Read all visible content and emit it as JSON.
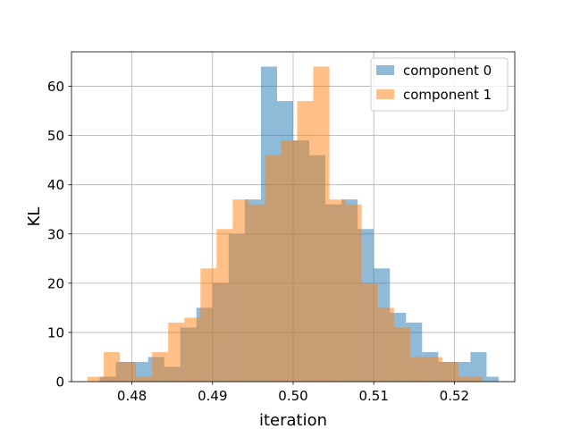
{
  "chart_data": {
    "type": "bar",
    "subtype": "overlapping-histogram",
    "xlabel": "iteration",
    "ylabel": "KL",
    "xlim": [
      0.4725,
      0.5275
    ],
    "ylim": [
      0,
      67
    ],
    "xticks": [
      0.48,
      0.49,
      0.5,
      0.51,
      0.52
    ],
    "xtick_labels": [
      "0.48",
      "0.49",
      "0.50",
      "0.51",
      "0.52"
    ],
    "yticks": [
      0,
      10,
      20,
      30,
      40,
      50,
      60
    ],
    "ytick_labels": [
      "0",
      "10",
      "20",
      "30",
      "40",
      "50",
      "60"
    ],
    "grid": true,
    "legend_position": "top-right",
    "series": [
      {
        "name": "component 0",
        "color": "#1f77b4",
        "alpha": 0.5,
        "bin_edges": [
          0.476,
          0.478,
          0.48,
          0.482,
          0.484,
          0.486,
          0.488,
          0.49,
          0.492,
          0.494,
          0.496,
          0.498,
          0.5,
          0.502,
          0.504,
          0.506,
          0.508,
          0.51,
          0.512,
          0.514,
          0.516,
          0.518,
          0.52,
          0.522,
          0.524,
          0.5255
        ],
        "counts": [
          1,
          4,
          4,
          5,
          3,
          11,
          15,
          20,
          30,
          37,
          64,
          57,
          49,
          46,
          36,
          37,
          31,
          23,
          14,
          12,
          6,
          4,
          4,
          6,
          1
        ]
      },
      {
        "name": "component 1",
        "color": "#ff7f0e",
        "alpha": 0.5,
        "bin_edges": [
          0.4745,
          0.4765,
          0.4785,
          0.4805,
          0.4825,
          0.4845,
          0.4865,
          0.4885,
          0.4905,
          0.4925,
          0.4945,
          0.4965,
          0.4985,
          0.5005,
          0.5025,
          0.5045,
          0.5065,
          0.5085,
          0.5105,
          0.5125,
          0.5145,
          0.5165,
          0.5185,
          0.5205,
          0.5225,
          0.5235
        ],
        "counts": [
          1,
          6,
          4,
          1,
          6,
          12,
          13,
          23,
          31,
          37,
          36,
          46,
          49,
          57,
          64,
          37,
          36,
          20,
          15,
          11,
          5,
          5,
          4,
          1,
          1
        ]
      }
    ]
  }
}
